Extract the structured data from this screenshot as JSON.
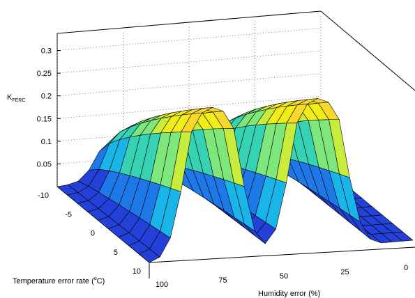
{
  "chart_data": {
    "type": "surface",
    "zlabel": "K",
    "zlabel_sub": "FERC",
    "xlabel_pre": "Temperature error rate  (",
    "xlabel_sup": "o",
    "xlabel_post": "C)",
    "ylabel": "Humidity error (%)",
    "z_ticks": [
      "0.05",
      "0.1",
      "0.15",
      "0.2",
      "0.25",
      "0.3"
    ],
    "temp_ticks": [
      "-10",
      "-5",
      "0",
      "5",
      "10"
    ],
    "hum_ticks": [
      "100",
      "75",
      "50",
      "25",
      "0"
    ],
    "temp_range": [
      -10,
      10
    ],
    "humidity_range": [
      0,
      100
    ],
    "z_range": [
      0,
      0.33
    ],
    "grid": true,
    "colormap": [
      "#2340d8",
      "#1f78e8",
      "#19b4e8",
      "#35d2b4",
      "#7ee67a",
      "#c8ec3c",
      "#f2ec18",
      "#f8d82a"
    ],
    "humidity_profile": {
      "humidity": [
        100,
        96,
        92,
        88,
        84,
        80,
        76,
        72,
        68,
        64,
        60,
        56,
        52,
        48,
        44,
        40,
        36,
        32,
        28,
        24,
        20,
        16,
        12,
        8,
        4,
        0
      ],
      "k_at_temp_minus_10": [
        0.0,
        0.002,
        0.008,
        0.03,
        0.07,
        0.09,
        0.1,
        0.09,
        0.07,
        0.03,
        0.01,
        0.005,
        0.01,
        0.03,
        0.07,
        0.09,
        0.1,
        0.09,
        0.07,
        0.03,
        0.01,
        0.005,
        0.002,
        0.0,
        0.0,
        0.0
      ],
      "k_at_temp_plus_10": [
        0.0,
        0.01,
        0.05,
        0.15,
        0.28,
        0.32,
        0.33,
        0.32,
        0.28,
        0.15,
        0.05,
        0.02,
        0.05,
        0.15,
        0.28,
        0.32,
        0.33,
        0.32,
        0.28,
        0.15,
        0.05,
        0.01,
        0.0,
        0.0,
        0.0,
        0.0
      ]
    }
  }
}
